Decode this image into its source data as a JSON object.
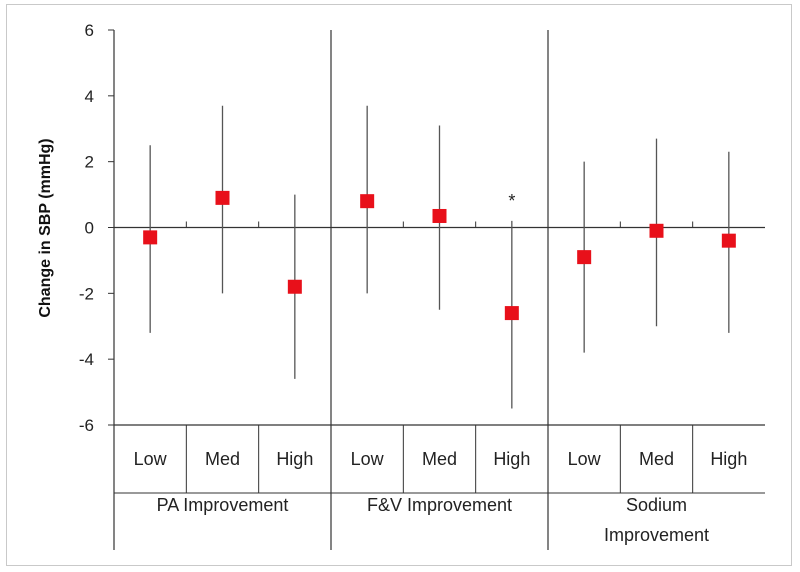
{
  "chart_data": {
    "type": "scatter",
    "title": "",
    "ylabel": "Change in SBP (mmHg)",
    "xlabel": "",
    "ylim": [
      -6,
      6
    ],
    "yticks": [
      6,
      4,
      2,
      0,
      -2,
      -4,
      -6
    ],
    "ytick_labels": [
      "6",
      "4",
      "2",
      "0",
      "-2",
      "-4",
      "-6"
    ],
    "marker_color": "#e8101a",
    "groups": [
      {
        "name": "PA Improvement",
        "name_lines": [
          "PA Improvement"
        ],
        "categories": [
          "Low",
          "Med",
          "High"
        ],
        "values": [
          -0.3,
          0.9,
          -1.8
        ],
        "lower": [
          -3.2,
          -2.0,
          -4.6
        ],
        "upper": [
          2.5,
          3.7,
          1.0
        ],
        "annotations": [
          "",
          "",
          ""
        ]
      },
      {
        "name": "F&V Improvement",
        "name_lines": [
          "F&V Improvement"
        ],
        "categories": [
          "Low",
          "Med",
          "High"
        ],
        "values": [
          0.8,
          0.35,
          -2.6
        ],
        "lower": [
          -2.0,
          -2.5,
          -5.5
        ],
        "upper": [
          3.7,
          3.1,
          0.2
        ],
        "annotations": [
          "",
          "",
          "*"
        ]
      },
      {
        "name": "Sodium Improvement",
        "name_lines": [
          "Sodium",
          "Improvement"
        ],
        "categories": [
          "Low",
          "Med",
          "High"
        ],
        "values": [
          -0.9,
          -0.1,
          -0.4
        ],
        "lower": [
          -3.8,
          -3.0,
          -3.2
        ],
        "upper": [
          2.0,
          2.7,
          2.3
        ],
        "annotations": [
          "",
          "",
          ""
        ]
      }
    ]
  }
}
